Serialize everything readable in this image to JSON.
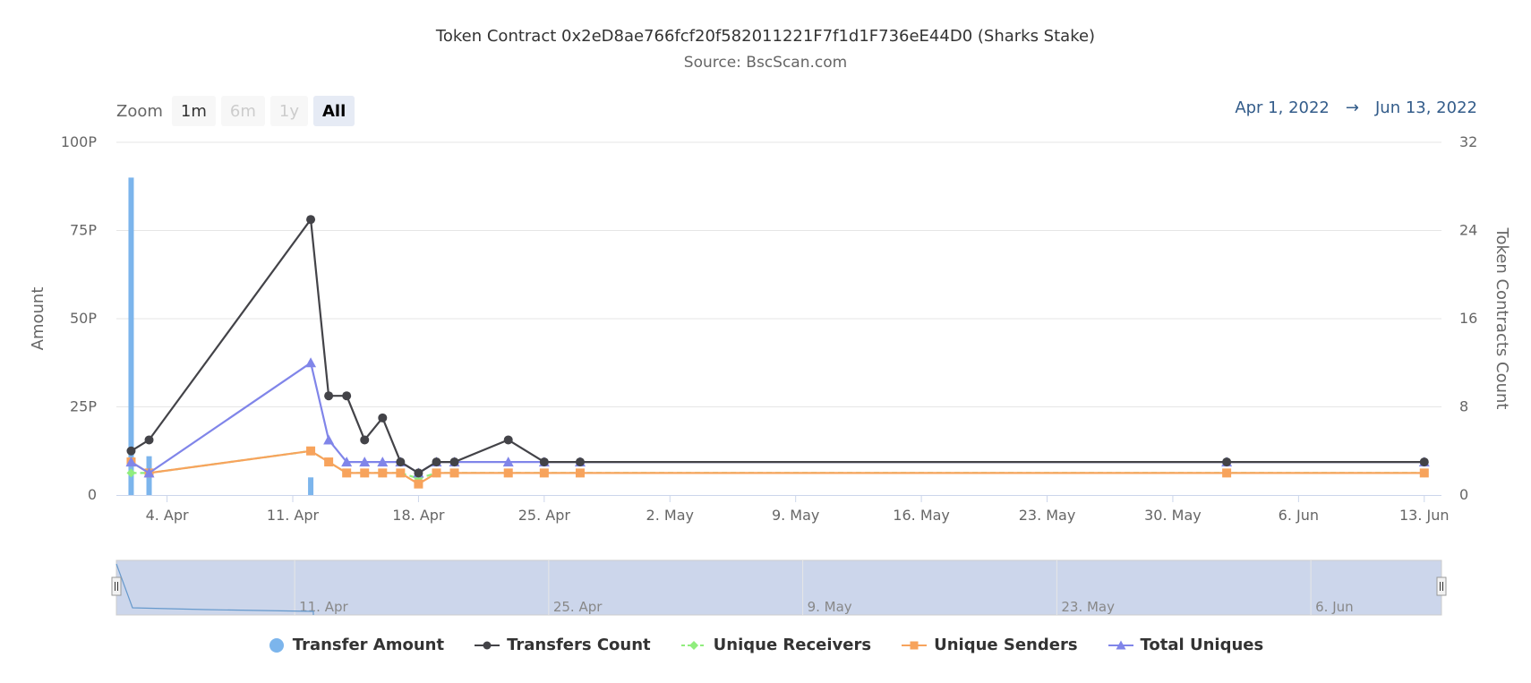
{
  "title": "Token Contract 0x2eD8ae766fcf20f582011221F7f1d1F736eE44D0 (Sharks Stake)",
  "subtitle": "Source: BscScan.com",
  "zoom": {
    "label": "Zoom",
    "buttons": [
      {
        "label": "1m",
        "state": "normal"
      },
      {
        "label": "6m",
        "state": "disabled"
      },
      {
        "label": "1y",
        "state": "disabled"
      },
      {
        "label": "All",
        "state": "active"
      }
    ]
  },
  "date_range": {
    "from": "Apr 1, 2022",
    "arrow": "→",
    "to": "Jun 13, 2022"
  },
  "colors": {
    "transfer_amount": "#7cb5ec",
    "transfers_count": "#434348",
    "unique_receivers": "#90ed7d",
    "unique_senders": "#f7a35c",
    "total_uniques": "#8085e9",
    "navigator_fill": "#ccd6eb",
    "grid": "#e6e6e6"
  },
  "chart_data": {
    "type": "line",
    "title": "Token Contract 0x2eD8ae766fcf20f582011221F7f1d1F736eE44D0 (Sharks Stake)",
    "subtitle": "Source: BscScan.com",
    "y_left": {
      "label": "Amount",
      "ticks": [
        "0",
        "25P",
        "50P",
        "75P",
        "100P"
      ],
      "range": [
        0,
        100
      ]
    },
    "y_right": {
      "label": "Token Contracts Count",
      "ticks": [
        "0",
        "8",
        "16",
        "24",
        "32"
      ],
      "range": [
        0,
        32
      ]
    },
    "x_axis": {
      "range": [
        "2022-04-01",
        "2022-06-13"
      ],
      "ticks": [
        {
          "date": "2022-04-04",
          "label": "4. Apr"
        },
        {
          "date": "2022-04-11",
          "label": "11. Apr"
        },
        {
          "date": "2022-04-18",
          "label": "18. Apr"
        },
        {
          "date": "2022-04-25",
          "label": "25. Apr"
        },
        {
          "date": "2022-05-02",
          "label": "2. May"
        },
        {
          "date": "2022-05-09",
          "label": "9. May"
        },
        {
          "date": "2022-05-16",
          "label": "16. May"
        },
        {
          "date": "2022-05-23",
          "label": "23. May"
        },
        {
          "date": "2022-05-30",
          "label": "30. May"
        },
        {
          "date": "2022-06-06",
          "label": "6. Jun"
        },
        {
          "date": "2022-06-13",
          "label": "13. Jun"
        }
      ]
    },
    "grid": true,
    "legend_position": "bottom",
    "series": [
      {
        "name": "Transfer Amount",
        "type": "column",
        "axis": "left",
        "unit": "P",
        "points": [
          [
            "2022-04-02",
            90
          ],
          [
            "2022-04-03",
            11
          ],
          [
            "2022-04-12",
            5
          ]
        ]
      },
      {
        "name": "Transfers Count",
        "type": "line",
        "axis": "right",
        "marker": "circle",
        "points": [
          [
            "2022-04-02",
            4
          ],
          [
            "2022-04-03",
            5
          ],
          [
            "2022-04-12",
            25
          ],
          [
            "2022-04-13",
            9
          ],
          [
            "2022-04-14",
            9
          ],
          [
            "2022-04-15",
            5
          ],
          [
            "2022-04-16",
            7
          ],
          [
            "2022-04-17",
            3
          ],
          [
            "2022-04-18",
            2
          ],
          [
            "2022-04-19",
            3
          ],
          [
            "2022-04-20",
            3
          ],
          [
            "2022-04-23",
            5
          ],
          [
            "2022-04-25",
            3
          ],
          [
            "2022-04-27",
            3
          ],
          [
            "2022-06-02",
            3
          ],
          [
            "2022-06-13",
            3
          ]
        ]
      },
      {
        "name": "Unique Receivers",
        "type": "line",
        "axis": "right",
        "marker": "diamond",
        "dash": true,
        "points": [
          [
            "2022-04-02",
            2
          ],
          [
            "2022-04-03",
            2
          ],
          [
            "2022-04-12",
            4
          ],
          [
            "2022-04-13",
            3
          ],
          [
            "2022-04-14",
            2
          ],
          [
            "2022-04-15",
            2
          ],
          [
            "2022-04-16",
            2
          ],
          [
            "2022-04-17",
            2
          ],
          [
            "2022-04-18",
            1.5
          ],
          [
            "2022-04-19",
            2
          ],
          [
            "2022-04-20",
            2
          ],
          [
            "2022-04-23",
            2
          ],
          [
            "2022-04-25",
            2
          ],
          [
            "2022-04-27",
            2
          ],
          [
            "2022-06-02",
            2
          ],
          [
            "2022-06-13",
            2
          ]
        ]
      },
      {
        "name": "Unique Senders",
        "type": "line",
        "axis": "right",
        "marker": "square",
        "points": [
          [
            "2022-04-02",
            3
          ],
          [
            "2022-04-03",
            2
          ],
          [
            "2022-04-12",
            4
          ],
          [
            "2022-04-13",
            3
          ],
          [
            "2022-04-14",
            2
          ],
          [
            "2022-04-15",
            2
          ],
          [
            "2022-04-16",
            2
          ],
          [
            "2022-04-17",
            2
          ],
          [
            "2022-04-18",
            1
          ],
          [
            "2022-04-19",
            2
          ],
          [
            "2022-04-20",
            2
          ],
          [
            "2022-04-23",
            2
          ],
          [
            "2022-04-25",
            2
          ],
          [
            "2022-04-27",
            2
          ],
          [
            "2022-06-02",
            2
          ],
          [
            "2022-06-13",
            2
          ]
        ]
      },
      {
        "name": "Total Uniques",
        "type": "line",
        "axis": "right",
        "marker": "triangle",
        "points": [
          [
            "2022-04-02",
            3
          ],
          [
            "2022-04-03",
            2
          ],
          [
            "2022-04-12",
            12
          ],
          [
            "2022-04-13",
            5
          ],
          [
            "2022-04-14",
            3
          ],
          [
            "2022-04-15",
            3
          ],
          [
            "2022-04-16",
            3
          ],
          [
            "2022-04-17",
            3
          ],
          [
            "2022-04-18",
            2
          ],
          [
            "2022-04-19",
            3
          ],
          [
            "2022-04-20",
            3
          ],
          [
            "2022-04-23",
            3
          ],
          [
            "2022-04-25",
            3
          ],
          [
            "2022-04-27",
            3
          ],
          [
            "2022-06-02",
            3
          ],
          [
            "2022-06-13",
            3
          ]
        ]
      }
    ],
    "navigator": {
      "labels": [
        "11. Apr",
        "25. Apr",
        "9. May",
        "23. May",
        "6. Jun"
      ],
      "selection": [
        "2022-04-01",
        "2022-06-13"
      ]
    }
  },
  "legend": [
    {
      "name": "Transfer Amount",
      "symbol": "circle"
    },
    {
      "name": "Transfers Count",
      "symbol": "circle-line"
    },
    {
      "name": "Unique Receivers",
      "symbol": "diamond-dash"
    },
    {
      "name": "Unique Senders",
      "symbol": "square-line"
    },
    {
      "name": "Total Uniques",
      "symbol": "triangle-line"
    }
  ]
}
